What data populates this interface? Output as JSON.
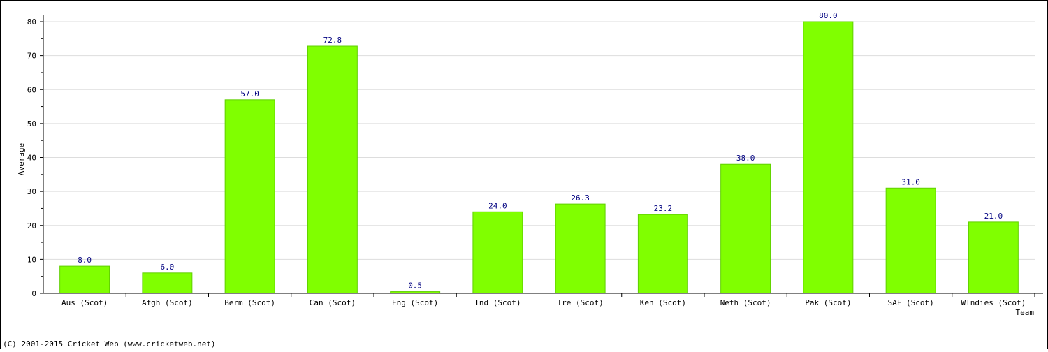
{
  "chart_data": {
    "type": "bar",
    "categories": [
      "Aus (Scot)",
      "Afgh (Scot)",
      "Berm (Scot)",
      "Can (Scot)",
      "Eng (Scot)",
      "Ind (Scot)",
      "Ire (Scot)",
      "Ken (Scot)",
      "Neth (Scot)",
      "Pak (Scot)",
      "SAF (Scot)",
      "WIndies (Scot)"
    ],
    "values": [
      8.0,
      6.0,
      57.0,
      72.8,
      0.5,
      24.0,
      26.3,
      23.2,
      38.0,
      80.0,
      31.0,
      21.0
    ],
    "data_labels": [
      "8.0",
      "6.0",
      "57.0",
      "72.8",
      "0.5",
      "24.0",
      "26.3",
      "23.2",
      "38.0",
      "80.0",
      "31.0",
      "21.0"
    ],
    "title": "",
    "xlabel": "Team",
    "ylabel": "Average",
    "ylim": [
      0,
      80
    ],
    "yticks": [
      "0",
      "10",
      "20",
      "30",
      "40",
      "50",
      "60",
      "70",
      "80"
    ],
    "grid": true,
    "bar_color": "#80ff00",
    "label_color": "#000080",
    "grid_color": "#dddddd"
  },
  "footer": {
    "credit": "(C) 2001-2015 Cricket Web (www.cricketweb.net)"
  }
}
